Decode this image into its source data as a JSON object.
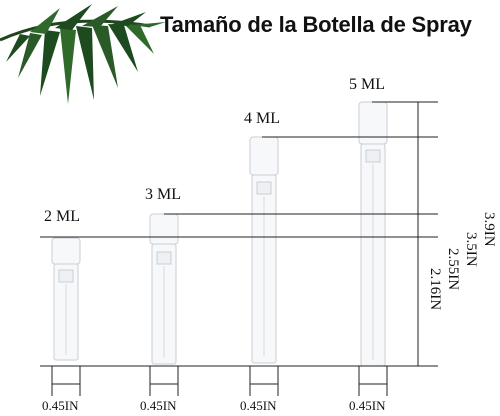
{
  "title": "Tamaño de la Botella de Spray",
  "bottles": [
    {
      "capacity": "2 ML",
      "width": "0.45IN"
    },
    {
      "capacity": "3 ML",
      "width": "0.45IN"
    },
    {
      "capacity": "4 ML",
      "width": "0.45IN"
    },
    {
      "capacity": "5 ML",
      "width": "0.45IN"
    }
  ],
  "heights": [
    "3.9IN",
    "3.5IN",
    "2.55IN",
    "2.16IN"
  ],
  "decoration": {
    "leaf_icon": "palm-leaf-icon",
    "leaf_color": "#1d4a1f"
  }
}
